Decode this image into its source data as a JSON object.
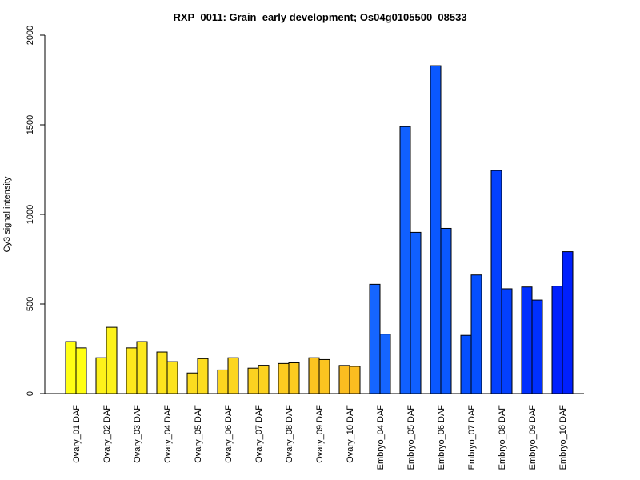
{
  "chart_data": {
    "type": "bar",
    "title": "RXP_0011: Grain_early development; Os04g0105500_08533",
    "xlabel": "",
    "ylabel": "Cy3 signal intensity",
    "ylim": [
      0,
      2000
    ],
    "yticks": [
      0,
      500,
      1000,
      1500,
      2000
    ],
    "grid": false,
    "legend": "none",
    "categories": [
      "Ovary_01 DAF",
      "Ovary_02 DAF",
      "Ovary_03 DAF",
      "Ovary_04 DAF",
      "Ovary_05 DAF",
      "Ovary_06 DAF",
      "Ovary_07 DAF",
      "Ovary_08 DAF",
      "Ovary_09 DAF",
      "Ovary_10 DAF",
      "Embryo_04 DAF",
      "Embryo_05 DAF",
      "Embryo_06 DAF",
      "Embryo_07 DAF",
      "Embryo_08 DAF",
      "Embryo_09 DAF",
      "Embryo_10 DAF"
    ],
    "series": [
      {
        "values": [
          290,
          200,
          255,
          232,
          115,
          132,
          142,
          168,
          200,
          157,
          610,
          1490,
          1830,
          325,
          1245,
          595,
          600
        ]
      },
      {
        "values": [
          255,
          370,
          290,
          178,
          195,
          200,
          158,
          172,
          190,
          152,
          332,
          900,
          922,
          662,
          585,
          522,
          792
        ]
      }
    ],
    "colors": [
      "#ffff14",
      "#fdf21a",
      "#fde81d",
      "#fce31e",
      "#fcdc1f",
      "#fcd61f",
      "#fcd220",
      "#fccb20",
      "#fbc420",
      "#fbbd20",
      "#1565ff",
      "#1060ff",
      "#0a58ff",
      "#054ffe",
      "#0340fe",
      "#0030fe",
      "#0020fe"
    ]
  }
}
